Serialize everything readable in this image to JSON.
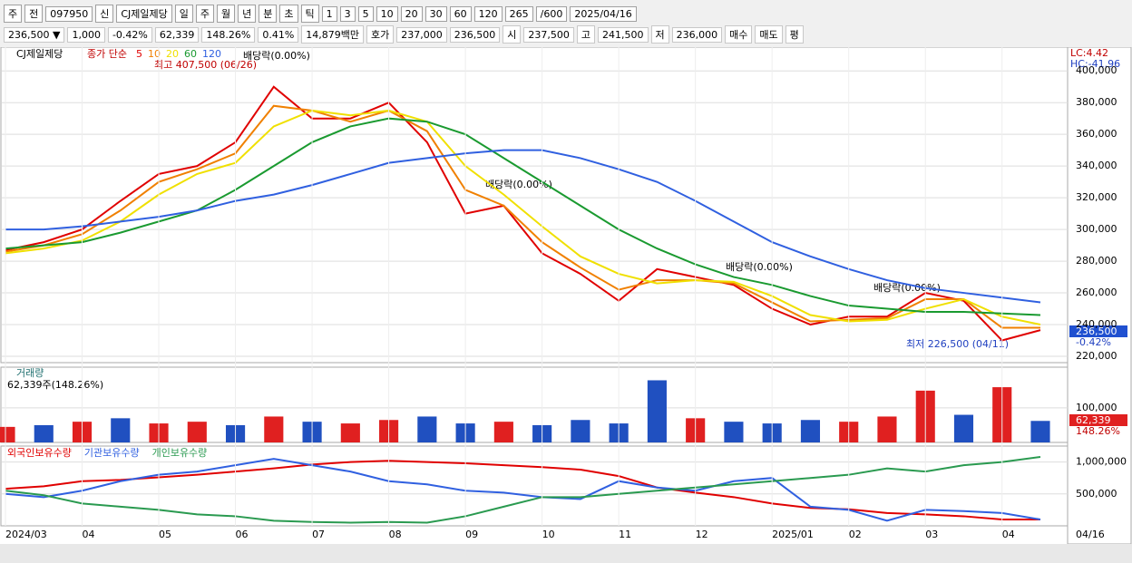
{
  "toolbar": {
    "row1": [
      "주",
      "전",
      "097950",
      "신",
      "CJ제일제당",
      "일",
      "주",
      "월",
      "년",
      "분",
      "초",
      "틱",
      "1",
      "3",
      "5",
      "10",
      "20",
      "30",
      "60",
      "120",
      "265",
      "/600",
      "2025/04/16"
    ],
    "row2": [
      "236,500 ▼",
      "1,000",
      "-0.42%",
      "62,339",
      "148.26%",
      "0.41%",
      "14,879백만",
      "호가",
      "237,000",
      "236,500",
      "시",
      "237,500",
      "고",
      "241,500",
      "저",
      "236,000",
      "매수",
      "매도",
      "평"
    ]
  },
  "chart_data": [
    {
      "type": "line",
      "name": "CJ제일제당",
      "subtitle": "종가 단순",
      "annotations": {
        "high": "최고 407,500 (06/26)",
        "low": "최저 226,500 (04/11)",
        "div1": "배당락(0.00%)",
        "div2": "배당락(0.00%)",
        "div3": "배당락(0.00%)",
        "div4": "배당락(0.00%)",
        "lc": "LC:4.42",
        "hc": "HC:-41.96",
        "last": "236,500",
        "last_change": "-0.42%"
      },
      "ylim": [
        216000,
        415000
      ],
      "yticks": [
        {
          "value": 220000,
          "label": "220,000"
        },
        {
          "value": 240000,
          "label": "240,000"
        },
        {
          "value": 260000,
          "label": "260,000"
        },
        {
          "value": 280000,
          "label": "280,000"
        },
        {
          "value": 300000,
          "label": "300,000"
        },
        {
          "value": 320000,
          "label": "320,000"
        },
        {
          "value": 340000,
          "label": "340,000"
        },
        {
          "value": 360000,
          "label": "360,000"
        },
        {
          "value": 380000,
          "label": "380,000"
        },
        {
          "value": 400000,
          "label": "400,000"
        }
      ],
      "series": [
        {
          "name": "5",
          "color": "#e00000",
          "values": [
            287000,
            292000,
            300000,
            318000,
            335000,
            340000,
            355000,
            390000,
            370000,
            370000,
            380000,
            355000,
            310000,
            315000,
            285000,
            272000,
            255000,
            275000,
            270000,
            265000,
            250000,
            240000,
            245000,
            245000,
            260000,
            255000,
            230000,
            236500
          ]
        },
        {
          "name": "10",
          "color": "#f08000",
          "values": [
            286000,
            290000,
            297000,
            312000,
            330000,
            338000,
            348000,
            378000,
            375000,
            368000,
            375000,
            362000,
            325000,
            315000,
            292000,
            276000,
            262000,
            268000,
            268000,
            266000,
            254000,
            242000,
            243000,
            244000,
            256000,
            256000,
            238000,
            238000
          ]
        },
        {
          "name": "20",
          "color": "#f0e000",
          "values": [
            285000,
            288000,
            293000,
            305000,
            322000,
            335000,
            342000,
            365000,
            375000,
            372000,
            375000,
            368000,
            340000,
            322000,
            302000,
            283000,
            272000,
            266000,
            268000,
            267000,
            258000,
            246000,
            242000,
            243000,
            250000,
            256000,
            245000,
            240000
          ]
        },
        {
          "name": "60",
          "color": "#1a9a30",
          "values": [
            288000,
            290000,
            292000,
            298000,
            305000,
            312000,
            325000,
            340000,
            355000,
            365000,
            370000,
            368000,
            360000,
            345000,
            330000,
            315000,
            300000,
            288000,
            278000,
            270000,
            265000,
            258000,
            252000,
            250000,
            248000,
            248000,
            247000,
            246000
          ]
        },
        {
          "name": "120",
          "color": "#3060e0",
          "values": [
            300000,
            300000,
            302000,
            305000,
            308000,
            312000,
            318000,
            322000,
            328000,
            335000,
            342000,
            345000,
            348000,
            350000,
            350000,
            345000,
            338000,
            330000,
            318000,
            305000,
            292000,
            283000,
            275000,
            268000,
            263000,
            260000,
            257000,
            254000
          ]
        }
      ]
    },
    {
      "type": "bar",
      "name": "거래량",
      "subtitle": "62,339주(148.26%)",
      "last": "62,339",
      "last_change": "148.26%",
      "ylim": [
        0,
        218000
      ],
      "yticks": [
        {
          "value": 100000,
          "label": "100,000"
        }
      ],
      "values": [
        45000,
        50000,
        60000,
        70000,
        55000,
        60000,
        50000,
        75000,
        60000,
        55000,
        65000,
        75000,
        55000,
        60000,
        50000,
        65000,
        55000,
        180000,
        70000,
        60000,
        55000,
        65000,
        60000,
        75000,
        150000,
        80000,
        160000,
        62339
      ],
      "colors": [
        "#e02020",
        "#2050c0",
        "#e02020",
        "#2050c0",
        "#e02020",
        "#e02020",
        "#2050c0",
        "#e02020",
        "#2050c0",
        "#e02020",
        "#e02020",
        "#2050c0",
        "#2050c0",
        "#e02020",
        "#2050c0",
        "#2050c0",
        "#2050c0",
        "#2050c0",
        "#e02020",
        "#2050c0",
        "#2050c0",
        "#2050c0",
        "#e02020",
        "#e02020",
        "#e02020",
        "#2050c0",
        "#e02020",
        "#2050c0"
      ]
    },
    {
      "type": "line",
      "categories": [
        "2024/03",
        null,
        "04",
        null,
        "05",
        null,
        "06",
        null,
        "07",
        null,
        "08",
        null,
        "09",
        null,
        "10",
        null,
        "11",
        null,
        "12",
        null,
        "2025/01",
        null,
        "02",
        null,
        "03",
        null,
        "04",
        null
      ],
      "x_end_label": "04/16",
      "ylim": [
        0,
        1250000
      ],
      "yticks": [
        {
          "value": 500000,
          "label": "500,000"
        },
        {
          "value": 1000000,
          "label": "1,000,000"
        }
      ],
      "series": [
        {
          "name": "외국인보유수량",
          "color": "#e00000",
          "values": [
            580000,
            620000,
            700000,
            720000,
            760000,
            800000,
            850000,
            900000,
            960000,
            1000000,
            1020000,
            1000000,
            980000,
            950000,
            920000,
            880000,
            780000,
            600000,
            520000,
            450000,
            350000,
            280000,
            260000,
            200000,
            180000,
            150000,
            100000,
            100000
          ]
        },
        {
          "name": "기관보유수량",
          "color": "#3060e0",
          "values": [
            500000,
            450000,
            550000,
            700000,
            800000,
            850000,
            950000,
            1050000,
            950000,
            850000,
            700000,
            650000,
            550000,
            520000,
            450000,
            420000,
            700000,
            600000,
            550000,
            700000,
            750000,
            300000,
            250000,
            80000,
            250000,
            230000,
            200000,
            100000
          ]
        },
        {
          "name": "개인보유수량",
          "color": "#2a9a50",
          "values": [
            550000,
            480000,
            350000,
            300000,
            250000,
            180000,
            150000,
            80000,
            60000,
            50000,
            60000,
            50000,
            150000,
            300000,
            450000,
            450000,
            500000,
            550000,
            600000,
            650000,
            700000,
            750000,
            800000,
            900000,
            850000,
            950000,
            1000000,
            1080000
          ]
        }
      ]
    }
  ]
}
